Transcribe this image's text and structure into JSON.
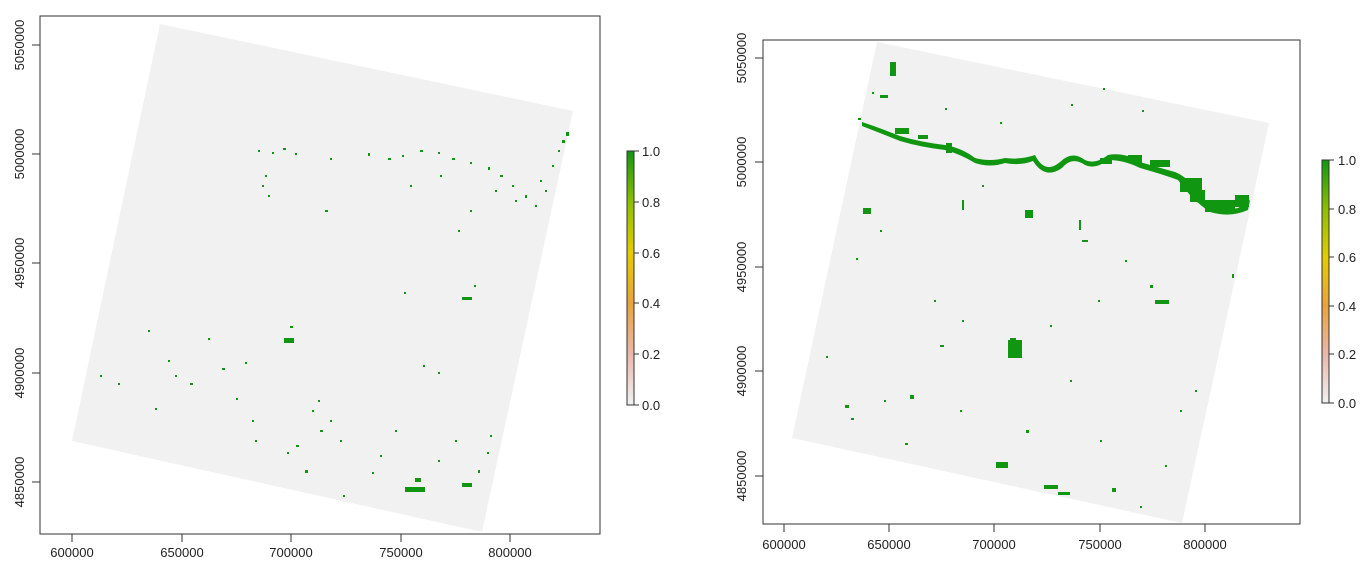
{
  "panels": [
    {
      "id": "left",
      "x_ticks": [
        "600000",
        "650000",
        "700000",
        "750000",
        "800000"
      ],
      "y_ticks": [
        "4850000",
        "4900000",
        "4950000",
        "5000000",
        "5050000"
      ],
      "legend_labels": [
        "0.0",
        "0.2",
        "0.4",
        "0.6",
        "0.8",
        "1.0"
      ],
      "scene_corners": [
        [
          641000,
          5057000
        ],
        [
          827000,
          5018000
        ],
        [
          786000,
          4828000
        ],
        [
          600000,
          4868000
        ]
      ]
    },
    {
      "id": "right",
      "x_ticks": [
        "600000",
        "650000",
        "700000",
        "750000",
        "800000"
      ],
      "y_ticks": [
        "4850000",
        "4900000",
        "4950000",
        "5000000",
        "5050000"
      ],
      "legend_labels": [
        "0.0",
        "0.2",
        "0.4",
        "0.6",
        "0.8",
        "1.0"
      ],
      "scene_corners": [
        [
          645000,
          5057000
        ],
        [
          831000,
          5018000
        ],
        [
          789000,
          4829000
        ],
        [
          603000,
          4868000
        ]
      ]
    }
  ],
  "colors": {
    "scene_fill": "#f1f1f1",
    "detected": "#119611",
    "ramp": [
      "#f1f1f1",
      "#eab7ab",
      "#e9a33c",
      "#e4cb00",
      "#8cbf00",
      "#119611"
    ]
  }
}
